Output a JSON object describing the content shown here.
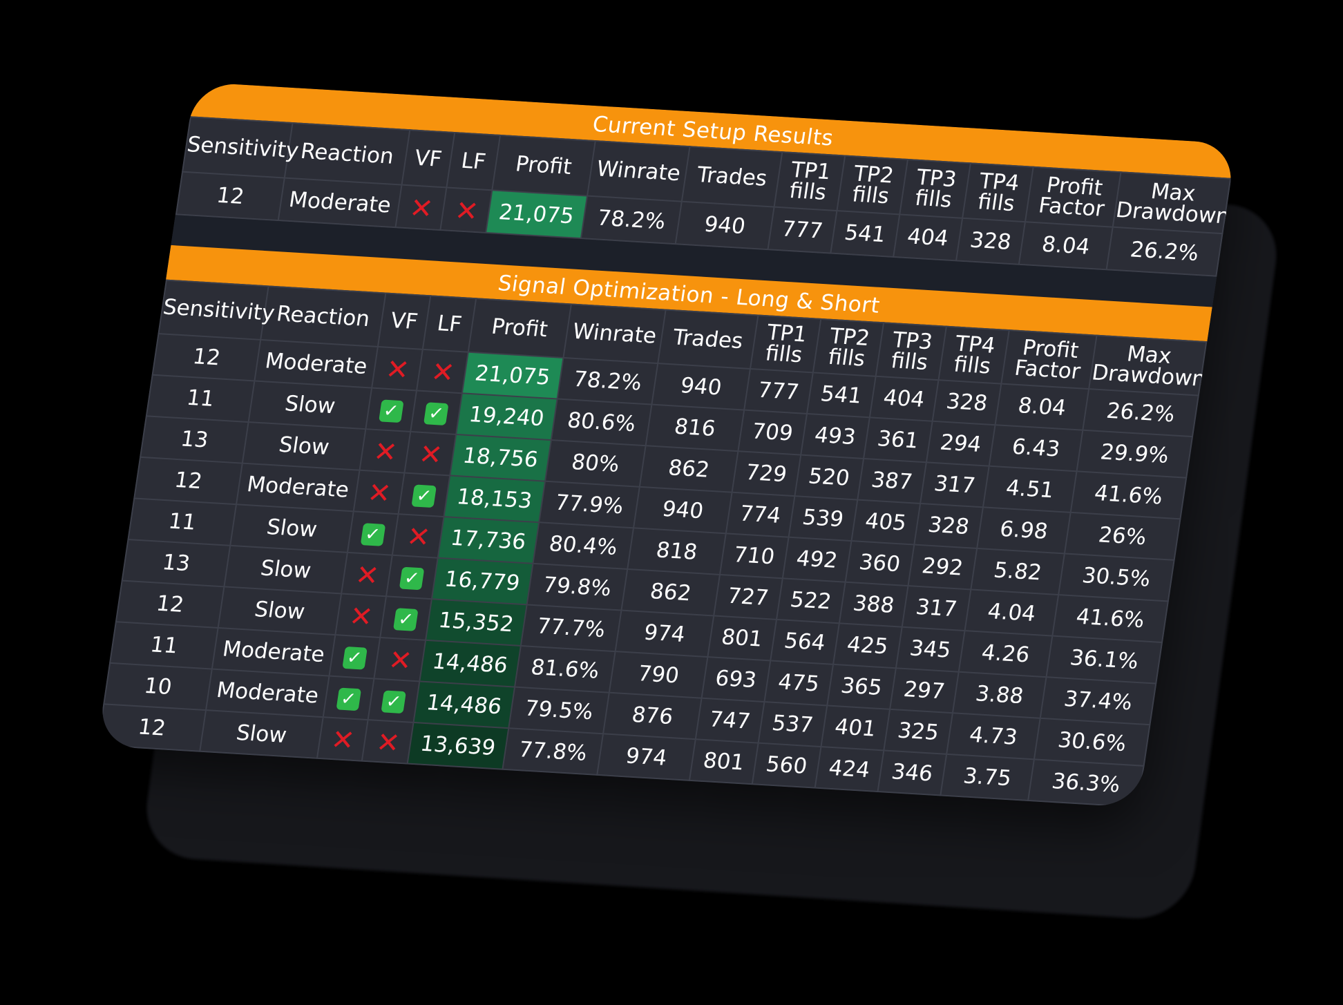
{
  "colors": {
    "banner": "#f7930d",
    "background": "#2b2d36",
    "gap": "#1c2029",
    "profit_max": "#1e8a55",
    "profit_min": "#0d3a24",
    "cross": "#e01b24",
    "check": "#2fb84a"
  },
  "current": {
    "title": "Current Setup Results",
    "headers": [
      "Sensitivity",
      "Reaction",
      "VF",
      "LF",
      "Profit",
      "Winrate",
      "Trades",
      "TP1 fills",
      "TP2 fills",
      "TP3 fills",
      "TP4 fills",
      "Profit Factor",
      "Max Drawdown"
    ],
    "row": {
      "sensitivity": "12",
      "reaction": "Moderate",
      "vf": "cross-icon",
      "lf": "cross-icon",
      "profit": "21,075",
      "winrate": "78.2%",
      "trades": "940",
      "tp1": "777",
      "tp2": "541",
      "tp3": "404",
      "tp4": "328",
      "profit_factor": "8.04",
      "max_drawdown": "26.2%"
    }
  },
  "optimization": {
    "title": "Signal Optimization - Long & Short",
    "headers": [
      "Sensitivity",
      "Reaction",
      "VF",
      "LF",
      "Profit",
      "Winrate",
      "Trades",
      "TP1 fills",
      "TP2 fills",
      "TP3 fills",
      "TP4 fills",
      "Profit Factor",
      "Max Drawdown"
    ],
    "rows": [
      {
        "sensitivity": "12",
        "reaction": "Moderate",
        "vf": "cross-icon",
        "lf": "cross-icon",
        "profit": "21,075",
        "winrate": "78.2%",
        "trades": "940",
        "tp1": "777",
        "tp2": "541",
        "tp3": "404",
        "tp4": "328",
        "profit_factor": "8.04",
        "max_drawdown": "26.2%"
      },
      {
        "sensitivity": "11",
        "reaction": "Slow",
        "vf": "check-icon",
        "lf": "check-icon",
        "profit": "19,240",
        "winrate": "80.6%",
        "trades": "816",
        "tp1": "709",
        "tp2": "493",
        "tp3": "361",
        "tp4": "294",
        "profit_factor": "6.43",
        "max_drawdown": "29.9%"
      },
      {
        "sensitivity": "13",
        "reaction": "Slow",
        "vf": "cross-icon",
        "lf": "cross-icon",
        "profit": "18,756",
        "winrate": "80%",
        "trades": "862",
        "tp1": "729",
        "tp2": "520",
        "tp3": "387",
        "tp4": "317",
        "profit_factor": "4.51",
        "max_drawdown": "41.6%"
      },
      {
        "sensitivity": "12",
        "reaction": "Moderate",
        "vf": "cross-icon",
        "lf": "check-icon",
        "profit": "18,153",
        "winrate": "77.9%",
        "trades": "940",
        "tp1": "774",
        "tp2": "539",
        "tp3": "405",
        "tp4": "328",
        "profit_factor": "6.98",
        "max_drawdown": "26%"
      },
      {
        "sensitivity": "11",
        "reaction": "Slow",
        "vf": "check-icon",
        "lf": "cross-icon",
        "profit": "17,736",
        "winrate": "80.4%",
        "trades": "818",
        "tp1": "710",
        "tp2": "492",
        "tp3": "360",
        "tp4": "292",
        "profit_factor": "5.82",
        "max_drawdown": "30.5%"
      },
      {
        "sensitivity": "13",
        "reaction": "Slow",
        "vf": "cross-icon",
        "lf": "check-icon",
        "profit": "16,779",
        "winrate": "79.8%",
        "trades": "862",
        "tp1": "727",
        "tp2": "522",
        "tp3": "388",
        "tp4": "317",
        "profit_factor": "4.04",
        "max_drawdown": "41.6%"
      },
      {
        "sensitivity": "12",
        "reaction": "Slow",
        "vf": "cross-icon",
        "lf": "check-icon",
        "profit": "15,352",
        "winrate": "77.7%",
        "trades": "974",
        "tp1": "801",
        "tp2": "564",
        "tp3": "425",
        "tp4": "345",
        "profit_factor": "4.26",
        "max_drawdown": "36.1%"
      },
      {
        "sensitivity": "11",
        "reaction": "Moderate",
        "vf": "check-icon",
        "lf": "cross-icon",
        "profit": "14,486",
        "winrate": "81.6%",
        "trades": "790",
        "tp1": "693",
        "tp2": "475",
        "tp3": "365",
        "tp4": "297",
        "profit_factor": "3.88",
        "max_drawdown": "37.4%"
      },
      {
        "sensitivity": "10",
        "reaction": "Moderate",
        "vf": "check-icon",
        "lf": "check-icon",
        "profit": "14,486",
        "winrate": "79.5%",
        "trades": "876",
        "tp1": "747",
        "tp2": "537",
        "tp3": "401",
        "tp4": "325",
        "profit_factor": "4.73",
        "max_drawdown": "30.6%"
      },
      {
        "sensitivity": "12",
        "reaction": "Slow",
        "vf": "cross-icon",
        "lf": "cross-icon",
        "profit": "13,639",
        "winrate": "77.8%",
        "trades": "974",
        "tp1": "801",
        "tp2": "560",
        "tp3": "424",
        "tp4": "346",
        "profit_factor": "3.75",
        "max_drawdown": "36.3%"
      }
    ]
  }
}
